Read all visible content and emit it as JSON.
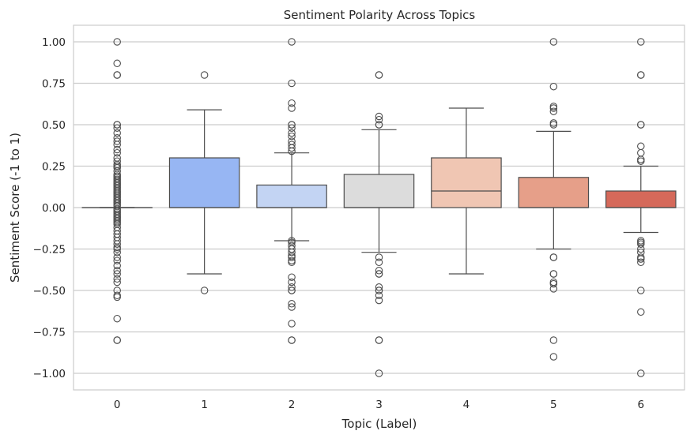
{
  "chart_data": {
    "type": "box",
    "title": "Sentiment Polarity Across Topics",
    "xlabel": "Topic (Label)",
    "ylabel": "Sentiment Score (-1 to 1)",
    "ylim": [
      -1.1,
      1.1
    ],
    "yticks": [
      -1.0,
      -0.75,
      -0.5,
      -0.25,
      0.0,
      0.25,
      0.5,
      0.75,
      1.0
    ],
    "ytick_labels": [
      "−1.00",
      "−0.75",
      "−0.50",
      "−0.25",
      "0.00",
      "0.25",
      "0.50",
      "0.75",
      "1.00"
    ],
    "grid": true,
    "categories": [
      "0",
      "1",
      "2",
      "3",
      "4",
      "5",
      "6"
    ],
    "boxes": [
      {
        "category": "0",
        "color": "#4f6ad7",
        "q1": 0.0,
        "median": 0.0,
        "q3": 0.0,
        "whisker_low": 0.0,
        "whisker_high": 0.0,
        "outliers": [
          1.0,
          0.87,
          0.8,
          0.8,
          0.5,
          0.5,
          0.48,
          0.45,
          0.42,
          0.4,
          0.38,
          0.35,
          0.33,
          0.3,
          0.28,
          0.26,
          0.25,
          0.24,
          0.22,
          0.2,
          0.19,
          0.18,
          0.17,
          0.16,
          0.15,
          0.14,
          0.13,
          0.12,
          0.11,
          0.1,
          0.09,
          0.08,
          0.07,
          0.06,
          0.05,
          0.04,
          0.03,
          0.02,
          0.01,
          -0.01,
          -0.02,
          -0.03,
          -0.04,
          -0.05,
          -0.06,
          -0.07,
          -0.08,
          -0.09,
          -0.1,
          -0.12,
          -0.14,
          -0.16,
          -0.18,
          -0.2,
          -0.22,
          -0.24,
          -0.25,
          -0.27,
          -0.3,
          -0.32,
          -0.35,
          -0.38,
          -0.4,
          -0.43,
          -0.45,
          -0.5,
          -0.53,
          -0.54,
          -0.67,
          -0.8,
          -0.8
        ]
      },
      {
        "category": "1",
        "color": "#97b6f3",
        "q1": 0.0,
        "median": 0.0,
        "q3": 0.3,
        "whisker_low": -0.4,
        "whisker_high": 0.59,
        "outliers": [
          0.8,
          -0.5
        ]
      },
      {
        "category": "2",
        "color": "#c3d4f3",
        "q1": 0.0,
        "median": 0.0,
        "q3": 0.136,
        "whisker_low": -0.2,
        "whisker_high": 0.33,
        "outliers": [
          1.0,
          0.75,
          0.63,
          0.6,
          0.5,
          0.5,
          0.48,
          0.45,
          0.43,
          0.4,
          0.38,
          0.36,
          0.34,
          -0.2,
          -0.21,
          -0.23,
          -0.25,
          -0.27,
          -0.29,
          -0.3,
          -0.32,
          -0.33,
          -0.42,
          -0.45,
          -0.48,
          -0.5,
          -0.5,
          -0.58,
          -0.6,
          -0.7,
          -0.8,
          -0.8
        ]
      },
      {
        "category": "3",
        "color": "#dcdcdc",
        "q1": 0.0,
        "median": 0.0,
        "q3": 0.2,
        "whisker_low": -0.27,
        "whisker_high": 0.47,
        "outliers": [
          0.8,
          0.8,
          0.55,
          0.53,
          0.5,
          0.5,
          -0.3,
          -0.33,
          -0.38,
          -0.4,
          -0.4,
          -0.48,
          -0.5,
          -0.5,
          -0.53,
          -0.56,
          -0.8,
          -0.8,
          -1.0
        ]
      },
      {
        "category": "4",
        "color": "#f0c6b3",
        "q1": 0.0,
        "median": 0.1,
        "q3": 0.3,
        "whisker_low": -0.4,
        "whisker_high": 0.6,
        "outliers": []
      },
      {
        "category": "5",
        "color": "#e69f89",
        "q1": 0.0,
        "median": 0.0,
        "q3": 0.182,
        "whisker_low": -0.25,
        "whisker_high": 0.46,
        "outliers": [
          1.0,
          0.73,
          0.61,
          0.6,
          0.58,
          0.51,
          0.5,
          -0.3,
          -0.3,
          -0.4,
          -0.4,
          -0.45,
          -0.46,
          -0.49,
          -0.8,
          -0.9
        ]
      },
      {
        "category": "6",
        "color": "#d5695a",
        "q1": 0.0,
        "median": 0.0,
        "q3": 0.1,
        "whisker_low": -0.15,
        "whisker_high": 0.25,
        "outliers": [
          1.0,
          0.8,
          0.8,
          0.5,
          0.5,
          0.37,
          0.33,
          0.29,
          0.28,
          -0.2,
          -0.21,
          -0.22,
          -0.25,
          -0.27,
          -0.3,
          -0.31,
          -0.33,
          -0.5,
          -0.63,
          -1.0
        ]
      }
    ]
  }
}
